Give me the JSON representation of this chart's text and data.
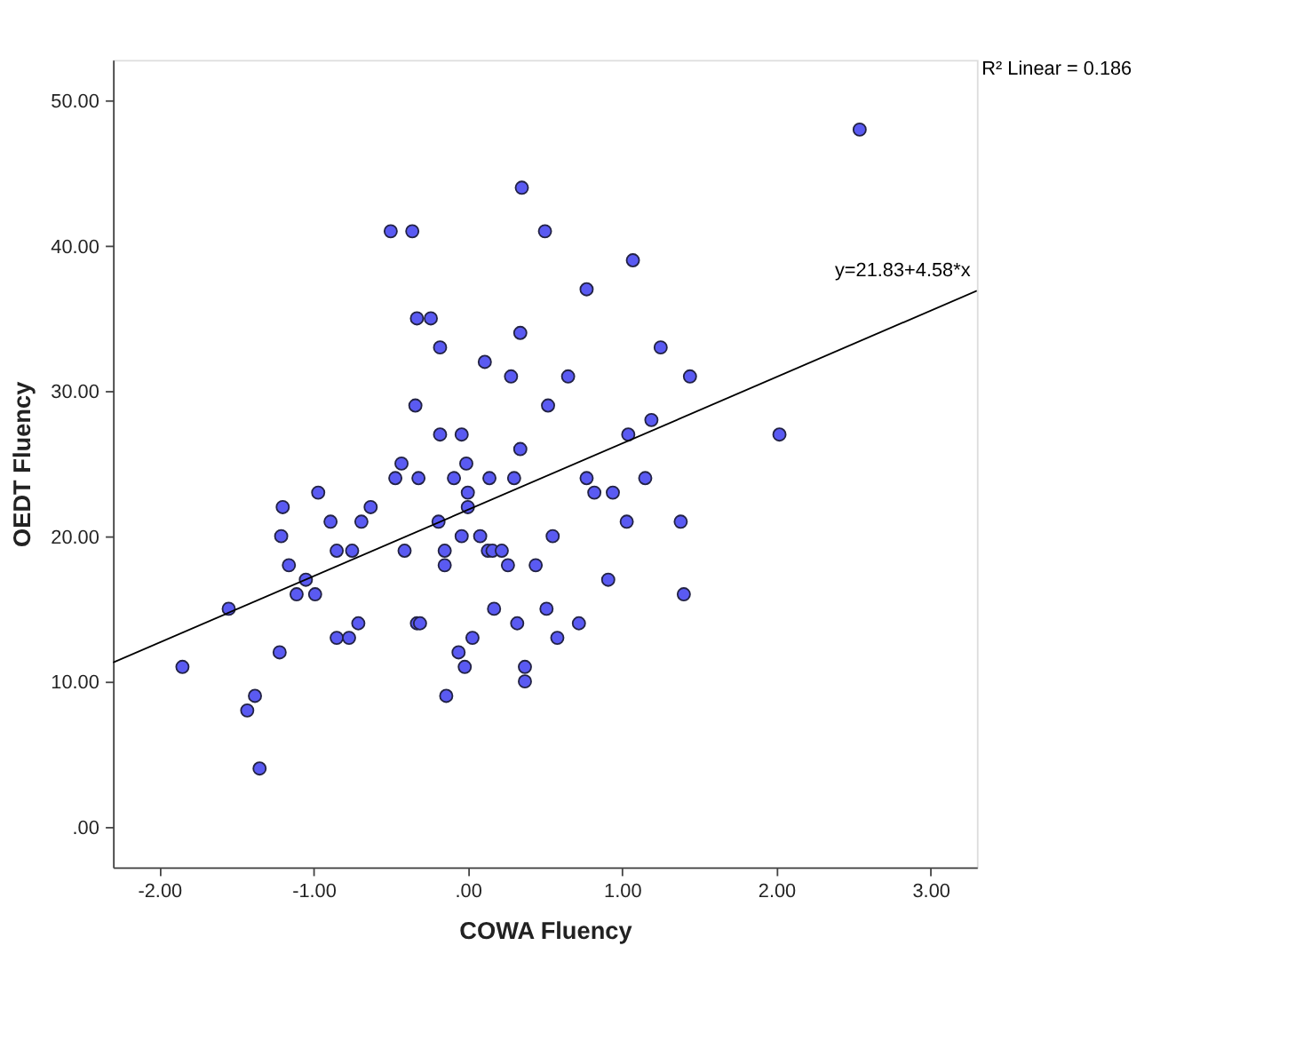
{
  "chart_data": {
    "type": "scatter",
    "xlabel": "COWA Fluency",
    "ylabel": "OEDT Fluency",
    "xlim": [
      -2.3,
      3.3
    ],
    "ylim": [
      -2.8,
      52.8
    ],
    "xticks": [
      {
        "value": -2,
        "label": "-2.00"
      },
      {
        "value": -1,
        "label": "-1.00"
      },
      {
        "value": 0,
        "label": ".00"
      },
      {
        "value": 1,
        "label": "1.00"
      },
      {
        "value": 2,
        "label": "2.00"
      },
      {
        "value": 3,
        "label": "3.00"
      }
    ],
    "yticks": [
      {
        "value": 0,
        "label": ".00"
      },
      {
        "value": 10,
        "label": "10.00"
      },
      {
        "value": 20,
        "label": "20.00"
      },
      {
        "value": 30,
        "label": "30.00"
      },
      {
        "value": 40,
        "label": "40.00"
      },
      {
        "value": 50,
        "label": "50.00"
      }
    ],
    "grid": false,
    "marker": "circle",
    "series": [
      {
        "color": "#5a5af2",
        "x": [
          2.54,
          0.35,
          -0.5,
          -0.36,
          0.5,
          1.07,
          0.77,
          -0.33,
          -0.24,
          0.34,
          -0.18,
          1.25,
          0.11,
          0.28,
          0.65,
          1.44,
          -0.34,
          0.52,
          1.19,
          -0.18,
          -0.04,
          1.04,
          2.02,
          0.34,
          -0.43,
          -0.01,
          -0.47,
          -0.32,
          -0.09,
          0.14,
          0.3,
          0.77,
          1.15,
          -0.97,
          0.0,
          0.82,
          0.94,
          -1.2,
          -0.63,
          0.0,
          -0.89,
          -0.69,
          -0.19,
          1.03,
          1.38,
          -1.21,
          -0.04,
          0.08,
          0.55,
          -0.85,
          -0.75,
          -0.41,
          -0.15,
          0.13,
          0.16,
          0.22,
          -1.16,
          -0.15,
          0.26,
          0.44,
          -1.05,
          0.91,
          -1.11,
          -0.99,
          1.4,
          -1.55,
          0.17,
          0.51,
          -0.71,
          -0.33,
          -0.31,
          0.32,
          0.72,
          -0.85,
          -0.77,
          0.03,
          0.58,
          -1.22,
          -0.06,
          -1.85,
          -0.02,
          0.37,
          0.37,
          -1.38,
          -0.14,
          -1.43,
          -1.35
        ],
        "values": [
          48,
          44,
          41,
          41,
          41,
          39,
          37,
          35,
          35,
          34,
          33,
          33,
          32,
          31,
          31,
          31,
          29,
          29,
          28,
          27,
          27,
          27,
          27,
          26,
          25,
          25,
          24,
          24,
          24,
          24,
          24,
          24,
          24,
          23,
          23,
          23,
          23,
          22,
          22,
          22,
          21,
          21,
          21,
          21,
          21,
          20,
          20,
          20,
          20,
          19,
          19,
          19,
          19,
          19,
          19,
          19,
          18,
          18,
          18,
          18,
          17,
          17,
          16,
          16,
          16,
          15,
          15,
          15,
          14,
          14,
          14,
          14,
          14,
          13,
          13,
          13,
          13,
          12,
          12,
          11,
          11,
          11,
          10,
          9,
          9,
          8,
          4
        ]
      },
      {
        "type": "line",
        "marker": "none",
        "color": "#000000",
        "x": [
          -2.3,
          3.3
        ],
        "values": [
          11.3,
          36.9
        ]
      }
    ],
    "annotations": [
      {
        "text": "y=21.83+4.58*x",
        "x": 3.3,
        "y": 36.9
      },
      "R² Linear = 0.186"
    ]
  }
}
